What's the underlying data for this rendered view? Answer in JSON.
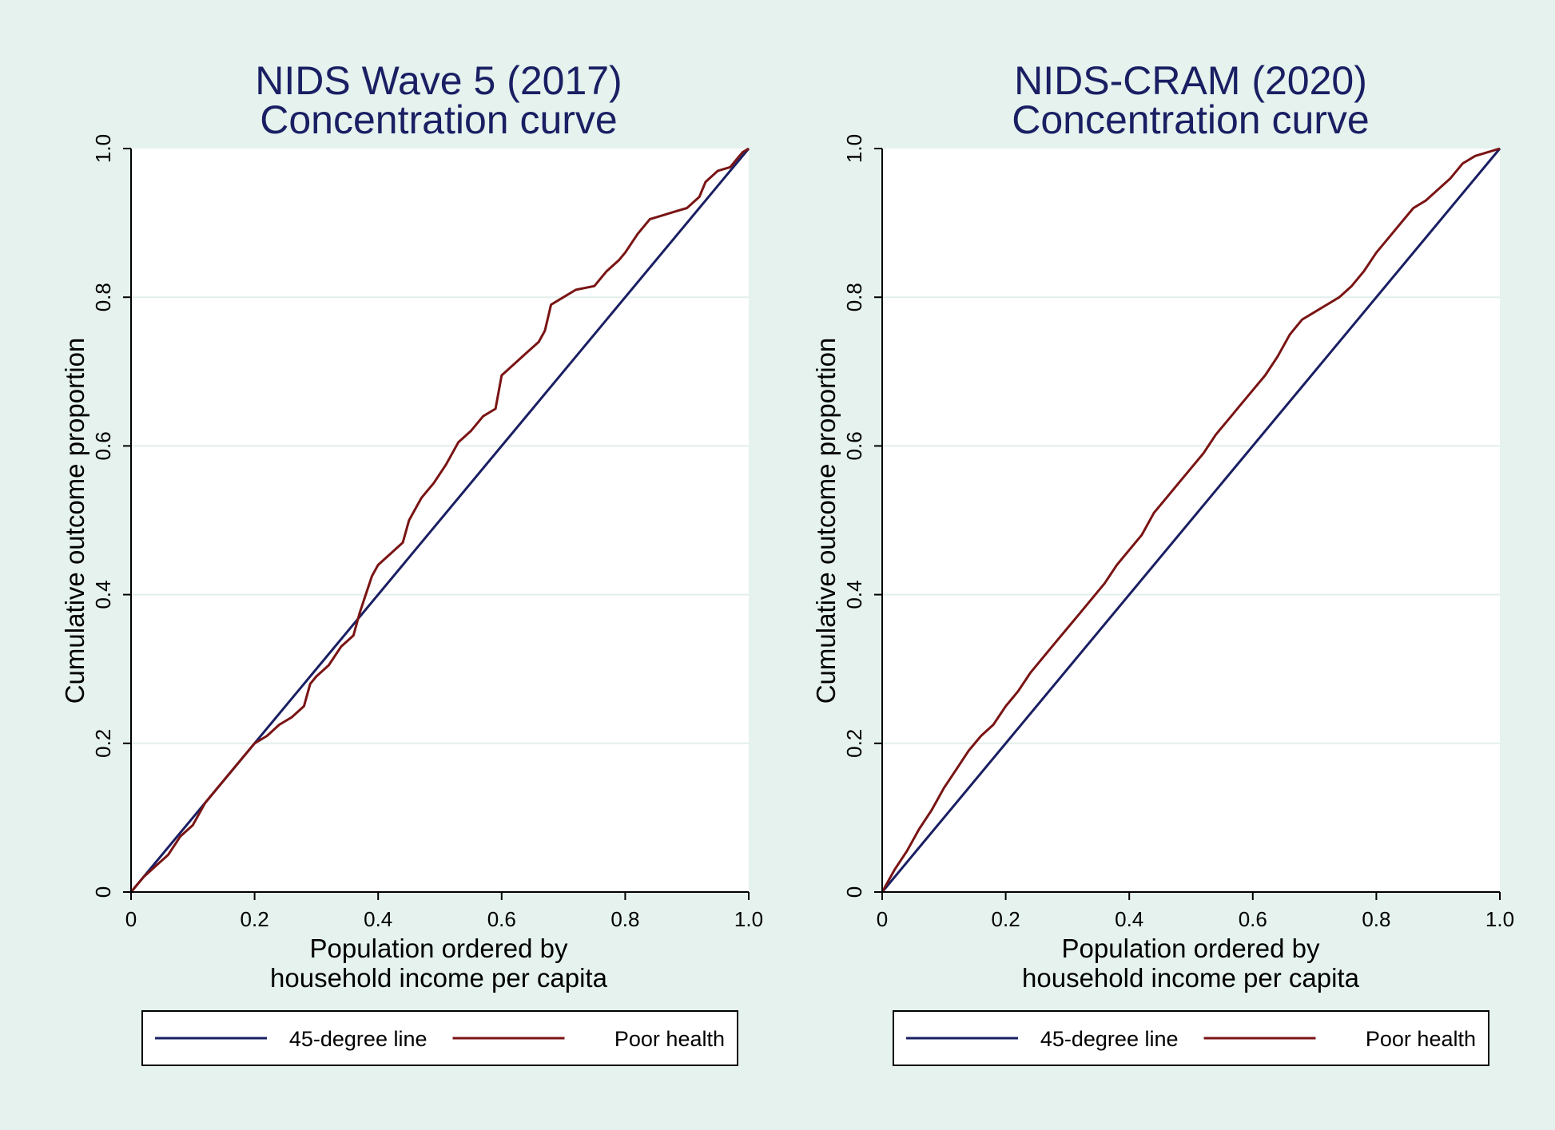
{
  "chart_data": [
    {
      "type": "line",
      "title": [
        "NIDS Wave 5 (2017)",
        "Concentration curve"
      ],
      "xlabel": [
        "Population ordered by",
        "household income per capita"
      ],
      "ylabel": "Cumulative outcome proportion",
      "xlim": [
        0,
        1
      ],
      "ylim": [
        0,
        1
      ],
      "x_ticks": [
        0,
        0.2,
        0.4,
        0.6,
        0.8,
        1.0
      ],
      "x_tick_labels": [
        "0",
        "0.2",
        "0.4",
        "0.6",
        "0.8",
        "1.0"
      ],
      "y_ticks": [
        0,
        0.2,
        0.4,
        0.6,
        0.8,
        1.0
      ],
      "y_tick_labels": [
        "0",
        "0.2",
        "0.4",
        "0.6",
        "0.8",
        "1.0"
      ],
      "grid": true,
      "legend": "bottom",
      "series": [
        {
          "name": "45-degree line",
          "color": "#1a1f63",
          "points": [
            [
              0,
              0
            ],
            [
              1,
              1
            ]
          ]
        },
        {
          "name": "Poor health",
          "color": "#7a1414",
          "points": [
            [
              0,
              0
            ],
            [
              0.02,
              0.02
            ],
            [
              0.04,
              0.035
            ],
            [
              0.06,
              0.05
            ],
            [
              0.08,
              0.075
            ],
            [
              0.1,
              0.09
            ],
            [
              0.12,
              0.12
            ],
            [
              0.14,
              0.14
            ],
            [
              0.16,
              0.16
            ],
            [
              0.18,
              0.18
            ],
            [
              0.2,
              0.2
            ],
            [
              0.22,
              0.21
            ],
            [
              0.24,
              0.225
            ],
            [
              0.26,
              0.235
            ],
            [
              0.28,
              0.25
            ],
            [
              0.29,
              0.28
            ],
            [
              0.3,
              0.29
            ],
            [
              0.32,
              0.305
            ],
            [
              0.34,
              0.33
            ],
            [
              0.36,
              0.345
            ],
            [
              0.37,
              0.375
            ],
            [
              0.38,
              0.4
            ],
            [
              0.39,
              0.425
            ],
            [
              0.4,
              0.44
            ],
            [
              0.42,
              0.455
            ],
            [
              0.44,
              0.47
            ],
            [
              0.45,
              0.5
            ],
            [
              0.47,
              0.53
            ],
            [
              0.49,
              0.55
            ],
            [
              0.51,
              0.575
            ],
            [
              0.53,
              0.605
            ],
            [
              0.55,
              0.62
            ],
            [
              0.57,
              0.64
            ],
            [
              0.59,
              0.65
            ],
            [
              0.6,
              0.695
            ],
            [
              0.62,
              0.71
            ],
            [
              0.64,
              0.725
            ],
            [
              0.66,
              0.74
            ],
            [
              0.67,
              0.755
            ],
            [
              0.68,
              0.79
            ],
            [
              0.7,
              0.8
            ],
            [
              0.72,
              0.81
            ],
            [
              0.75,
              0.815
            ],
            [
              0.77,
              0.835
            ],
            [
              0.79,
              0.85
            ],
            [
              0.8,
              0.86
            ],
            [
              0.82,
              0.885
            ],
            [
              0.84,
              0.905
            ],
            [
              0.86,
              0.91
            ],
            [
              0.88,
              0.915
            ],
            [
              0.9,
              0.92
            ],
            [
              0.92,
              0.935
            ],
            [
              0.93,
              0.955
            ],
            [
              0.95,
              0.97
            ],
            [
              0.97,
              0.975
            ],
            [
              0.98,
              0.985
            ],
            [
              0.99,
              0.995
            ],
            [
              1,
              1
            ]
          ]
        }
      ]
    },
    {
      "type": "line",
      "title": [
        "NIDS-CRAM (2020)",
        "Concentration curve"
      ],
      "xlabel": [
        "Population ordered by",
        "household income per capita"
      ],
      "ylabel": "Cumulative outcome proportion",
      "xlim": [
        0,
        1
      ],
      "ylim": [
        0,
        1
      ],
      "x_ticks": [
        0,
        0.2,
        0.4,
        0.6,
        0.8,
        1.0
      ],
      "x_tick_labels": [
        "0",
        "0.2",
        "0.4",
        "0.6",
        "0.8",
        "1.0"
      ],
      "y_ticks": [
        0,
        0.2,
        0.4,
        0.6,
        0.8,
        1.0
      ],
      "y_tick_labels": [
        "0",
        "0.2",
        "0.4",
        "0.6",
        "0.8",
        "1.0"
      ],
      "grid": true,
      "legend": "bottom",
      "series": [
        {
          "name": "45-degree line",
          "color": "#1a1f63",
          "points": [
            [
              0,
              0
            ],
            [
              1,
              1
            ]
          ]
        },
        {
          "name": "Poor health",
          "color": "#7a1414",
          "points": [
            [
              0,
              0
            ],
            [
              0.02,
              0.03
            ],
            [
              0.04,
              0.055
            ],
            [
              0.06,
              0.085
            ],
            [
              0.08,
              0.11
            ],
            [
              0.1,
              0.14
            ],
            [
              0.12,
              0.165
            ],
            [
              0.14,
              0.19
            ],
            [
              0.16,
              0.21
            ],
            [
              0.18,
              0.225
            ],
            [
              0.2,
              0.25
            ],
            [
              0.22,
              0.27
            ],
            [
              0.24,
              0.295
            ],
            [
              0.26,
              0.315
            ],
            [
              0.28,
              0.335
            ],
            [
              0.3,
              0.355
            ],
            [
              0.32,
              0.375
            ],
            [
              0.34,
              0.395
            ],
            [
              0.36,
              0.415
            ],
            [
              0.38,
              0.44
            ],
            [
              0.4,
              0.46
            ],
            [
              0.42,
              0.48
            ],
            [
              0.44,
              0.51
            ],
            [
              0.46,
              0.53
            ],
            [
              0.48,
              0.55
            ],
            [
              0.5,
              0.57
            ],
            [
              0.52,
              0.59
            ],
            [
              0.54,
              0.615
            ],
            [
              0.56,
              0.635
            ],
            [
              0.58,
              0.655
            ],
            [
              0.6,
              0.675
            ],
            [
              0.62,
              0.695
            ],
            [
              0.64,
              0.72
            ],
            [
              0.66,
              0.75
            ],
            [
              0.68,
              0.77
            ],
            [
              0.7,
              0.78
            ],
            [
              0.72,
              0.79
            ],
            [
              0.74,
              0.8
            ],
            [
              0.76,
              0.815
            ],
            [
              0.78,
              0.835
            ],
            [
              0.8,
              0.86
            ],
            [
              0.82,
              0.88
            ],
            [
              0.84,
              0.9
            ],
            [
              0.86,
              0.92
            ],
            [
              0.88,
              0.93
            ],
            [
              0.9,
              0.945
            ],
            [
              0.92,
              0.96
            ],
            [
              0.94,
              0.98
            ],
            [
              0.96,
              0.99
            ],
            [
              0.98,
              0.995
            ],
            [
              1,
              1
            ]
          ]
        }
      ]
    }
  ]
}
